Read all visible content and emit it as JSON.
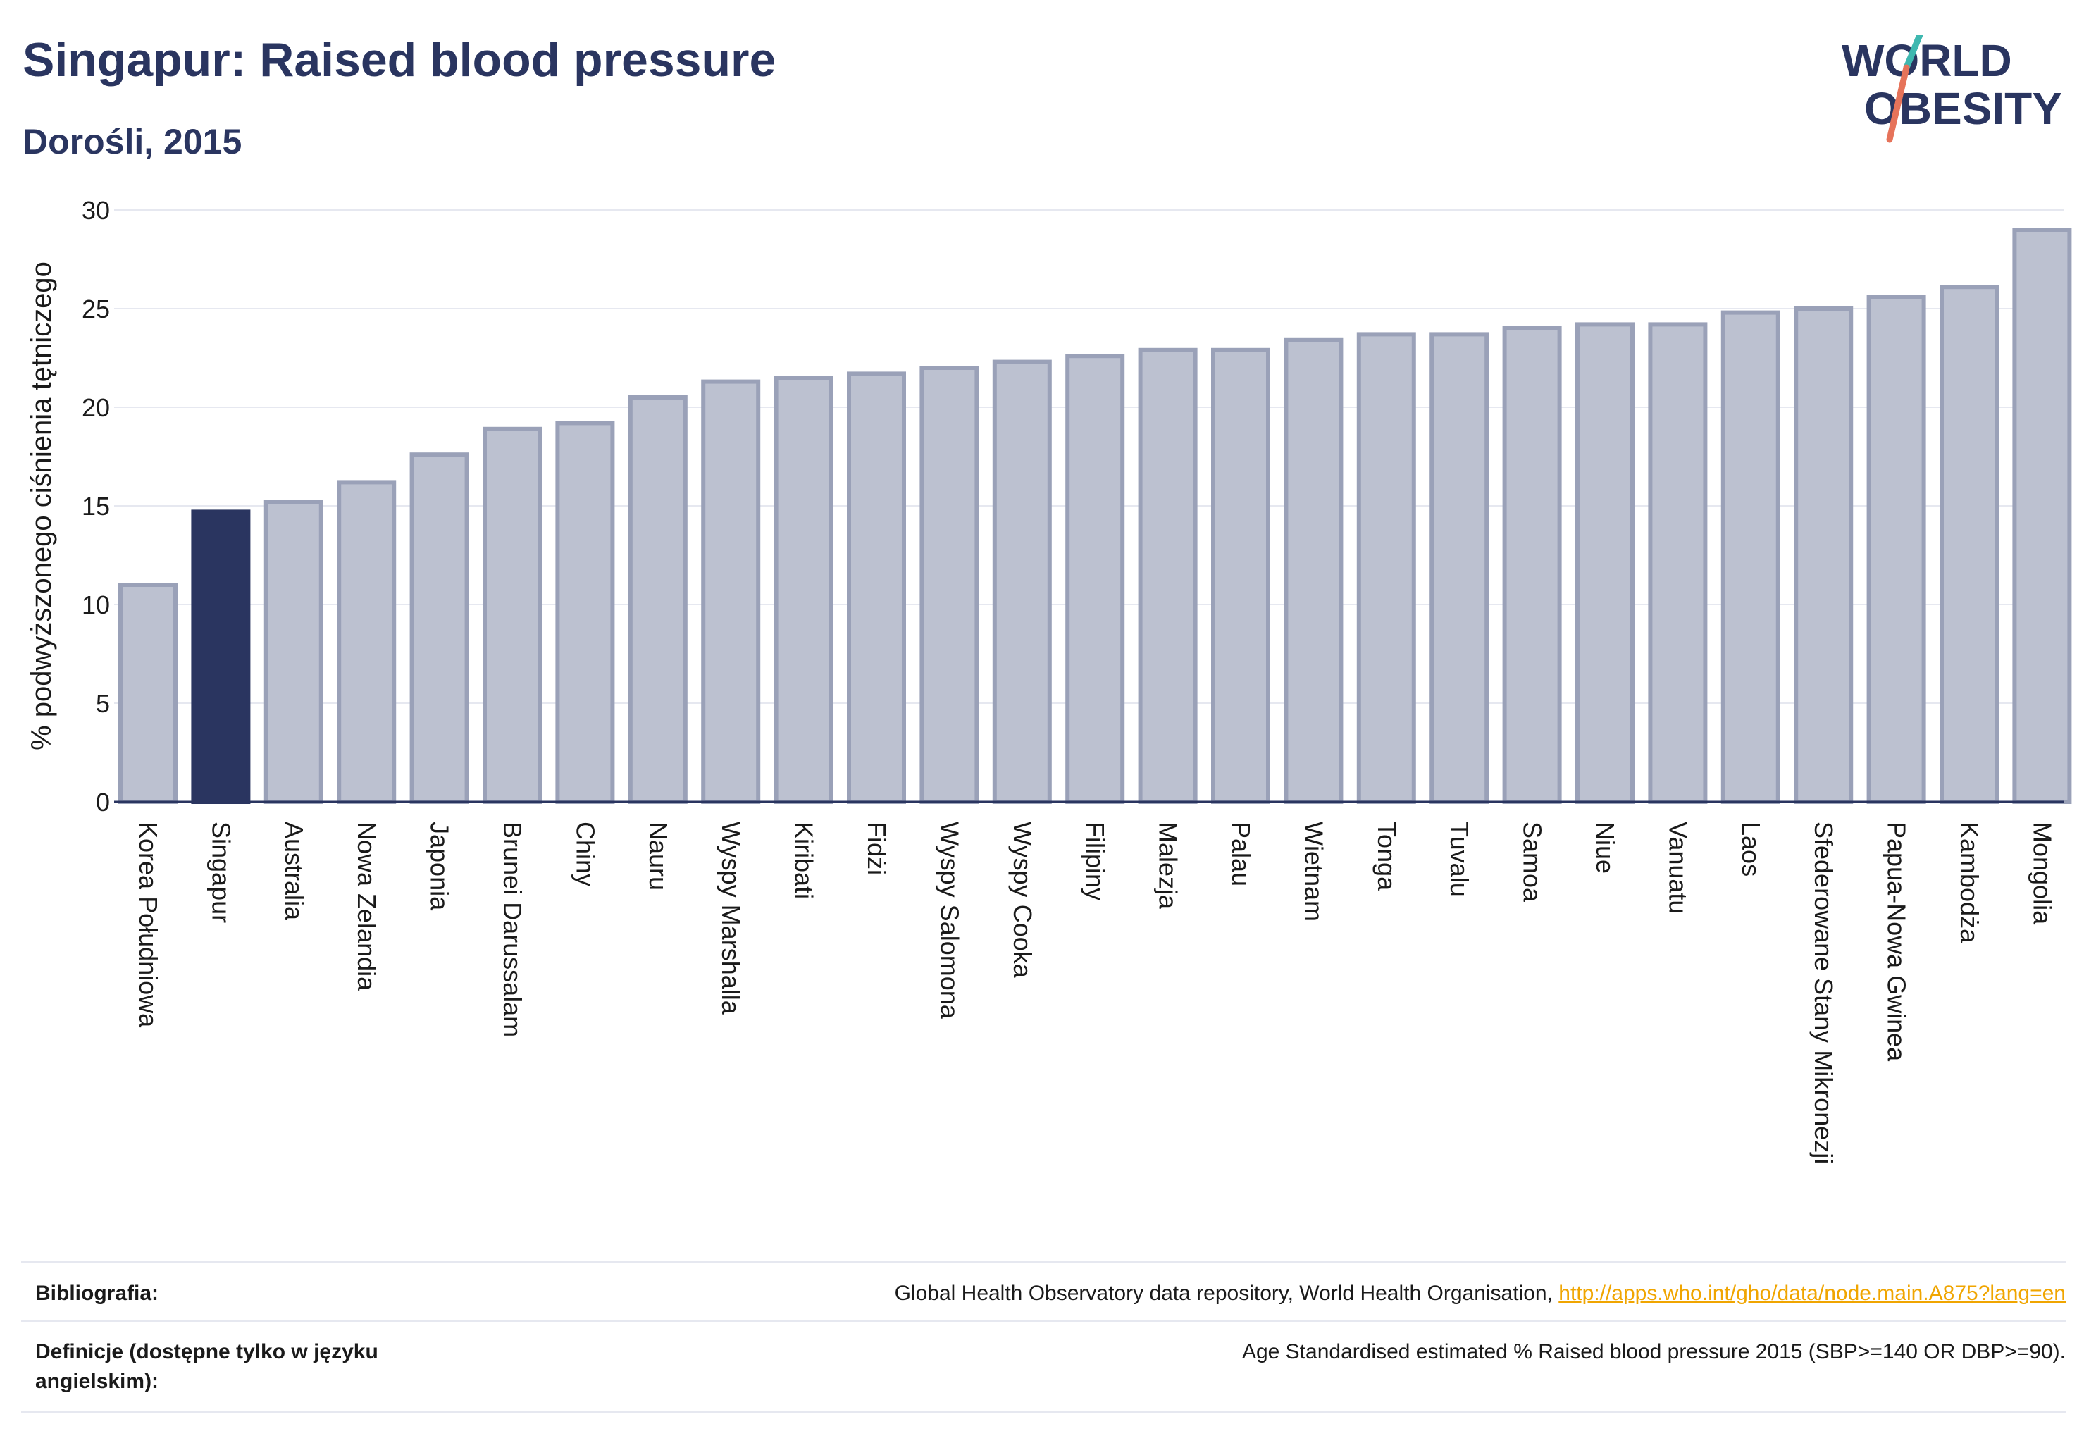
{
  "header": {
    "title": "Singapur: Raised blood pressure",
    "subtitle": "Dorośli, 2015",
    "logo_line1": "WORLD",
    "logo_line2": "OBESITY"
  },
  "colors": {
    "highlight": "#2a3560",
    "bar_fill": "#bcc1d0",
    "bar_stroke": "#9aa1b8",
    "accent_logo_teal": "#3fb8b0",
    "accent_logo_red": "#e6735a",
    "link": "#f0a500"
  },
  "chart_data": {
    "type": "bar",
    "title": "Singapur: Raised blood pressure",
    "subtitle": "Dorośli, 2015",
    "ylabel": "% podwyższonego ciśnienia tętniczego",
    "xlabel": "",
    "ylim": [
      0,
      30
    ],
    "yticks": [
      0,
      5,
      10,
      15,
      20,
      25,
      30
    ],
    "grid": true,
    "highlight": "Singapur",
    "categories": [
      "Korea Południowa",
      "Singapur",
      "Australia",
      "Nowa Zelandia",
      "Japonia",
      "Brunei Darussalam",
      "Chiny",
      "Nauru",
      "Wyspy Marshalla",
      "Kiribati",
      "Fidżi",
      "Wyspy Salomona",
      "Wyspy Cooka",
      "Filipiny",
      "Malezja",
      "Palau",
      "Wietnam",
      "Tonga",
      "Tuvalu",
      "Samoa",
      "Niue",
      "Vanuatu",
      "Laos",
      "Sfederowane Stany Mikronezji",
      "Papua-Nowa Gwinea",
      "Kambodża",
      "Mongolia"
    ],
    "values": [
      11.0,
      14.7,
      15.2,
      16.2,
      17.6,
      18.9,
      19.2,
      20.5,
      21.3,
      21.5,
      21.7,
      22.0,
      22.3,
      22.6,
      22.9,
      22.9,
      23.4,
      23.7,
      23.7,
      24.0,
      24.2,
      24.2,
      24.8,
      25.0,
      25.6,
      26.1,
      29.0
    ]
  },
  "footer": {
    "bibliography_label": "Bibliografia:",
    "bibliography_text": "Global Health Observatory data repository, World Health Organisation, ",
    "bibliography_link": "http://apps.who.int/gho/data/node.main.A875?lang=en",
    "definitions_label": "Definicje (dostępne tylko w języku angielskim):",
    "definitions_text": "Age Standardised estimated % Raised blood pressure 2015 (SBP>=140 OR DBP>=90)."
  }
}
